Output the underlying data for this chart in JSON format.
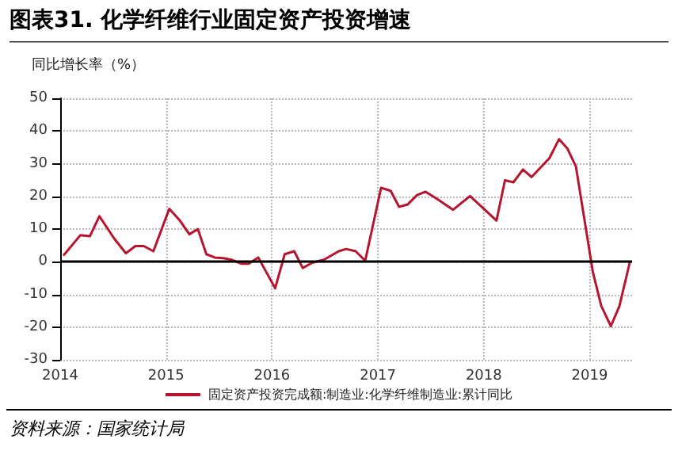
{
  "chart_data": {
    "type": "line",
    "title": "图表31. 化学纤维行业固定资产投资增速",
    "ylabel": "同比增长率（%）",
    "annotations": [
      "资料来源：国家统计局"
    ],
    "x": [
      2014.03,
      2014.19,
      2014.28,
      2014.37,
      2014.51,
      2014.62,
      2014.71,
      2014.79,
      2014.88,
      2015.03,
      2015.13,
      2015.22,
      2015.3,
      2015.38,
      2015.46,
      2015.54,
      2015.62,
      2015.71,
      2015.78,
      2015.87,
      2016.03,
      2016.12,
      2016.21,
      2016.29,
      2016.38,
      2016.49,
      2016.63,
      2016.7,
      2016.79,
      2016.88,
      2017.03,
      2017.12,
      2017.2,
      2017.28,
      2017.37,
      2017.45,
      2017.55,
      2017.71,
      2017.87,
      2018.12,
      2018.2,
      2018.28,
      2018.37,
      2018.45,
      2018.62,
      2018.71,
      2018.79,
      2018.87,
      2019.03,
      2019.11,
      2019.2,
      2019.28,
      2019.38
    ],
    "series": [
      {
        "name": "固定资产投资完成额:制造业:化学纤维制造业:累计同比",
        "color": "#b5152e",
        "values": [
          1.9,
          8.1,
          7.8,
          13.9,
          7.1,
          2.6,
          4.8,
          4.8,
          3.2,
          16.2,
          12.6,
          8.4,
          10,
          2.3,
          1.3,
          1.1,
          0.6,
          -0.6,
          -0.6,
          1.3,
          -8.1,
          2.3,
          3.2,
          -1.9,
          -0.3,
          0.6,
          3.2,
          3.9,
          3.2,
          0.3,
          22.6,
          21.7,
          16.8,
          17.5,
          20.4,
          21.4,
          19.4,
          15.9,
          20.1,
          12.6,
          24.9,
          24.3,
          28.2,
          25.9,
          31.7,
          37.5,
          34.6,
          29.1,
          -3.2,
          -13.6,
          -19.7,
          -13.6,
          0
        ]
      }
    ],
    "xlim": [
      2014,
      2019.4
    ],
    "xticks": [
      2014,
      2015,
      2016,
      2017,
      2018,
      2019
    ],
    "ylim": [
      -30,
      50
    ],
    "yticks": [
      -30,
      -20,
      -10,
      0,
      10,
      20,
      30,
      40,
      50
    ],
    "ref_lines": [
      {
        "axis": "y",
        "value": 0,
        "color": "#000000"
      }
    ],
    "grid": true,
    "legend": "bottom",
    "marker": "none",
    "line_style": "solid"
  }
}
